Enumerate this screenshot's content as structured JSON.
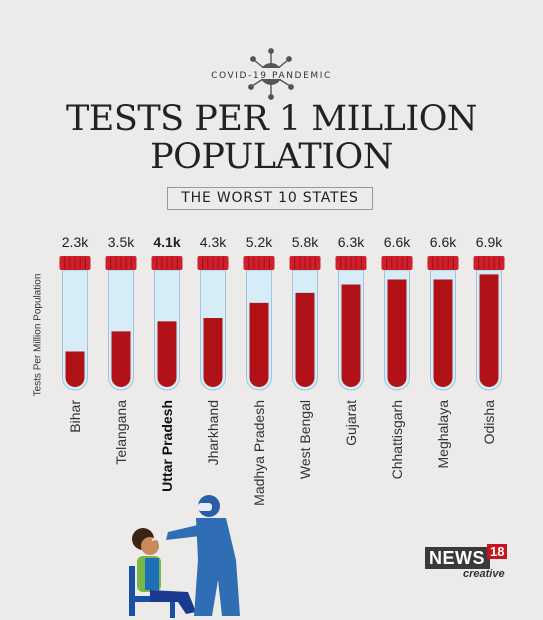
{
  "header": {
    "kicker": "COVID-19 PANDEMIC",
    "title_line1": "TESTS PER 1 MILLION",
    "title_line2": "POPULATION",
    "subtitle": "THE WORST 10 STATES"
  },
  "brand": {
    "name": "NEWS",
    "number": "18",
    "sub": "creative"
  },
  "icons": {
    "virus": "virus-icon",
    "illustration": "swab-test-illustration"
  },
  "colors": {
    "blood": "#b01217",
    "cap": "#cf1f2c",
    "tube_glass": "#d6ecf6",
    "highlight": "#b01217"
  },
  "chart_data": {
    "type": "bar",
    "ylabel": "Tests Per Million Population",
    "categories": [
      "Bihar",
      "Telangana",
      "Uttar Pradesh",
      "Jharkhand",
      "Madhya Pradesh",
      "West Bengal",
      "Gujarat",
      "Chhattisgarh",
      "Meghalaya",
      "Odisha"
    ],
    "values": [
      2.3,
      3.5,
      4.1,
      4.3,
      5.2,
      5.8,
      6.3,
      6.6,
      6.6,
      6.9
    ],
    "value_labels": [
      "2.3k",
      "3.5k",
      "4.1k",
      "4.3k",
      "5.2k",
      "5.8k",
      "6.3k",
      "6.6k",
      "6.6k",
      "6.9k"
    ],
    "highlight_index": 2
  }
}
